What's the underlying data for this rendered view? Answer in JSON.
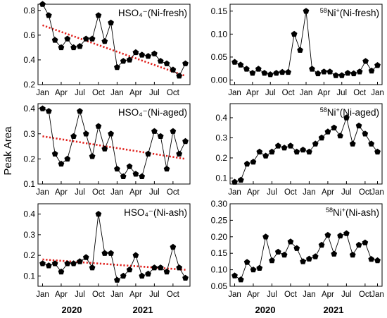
{
  "figure": {
    "ylabel": "Peak Area",
    "year_labels": [
      "2020",
      "2021"
    ],
    "colors": {
      "line": "#000000",
      "marker": "#000000",
      "trend": "#e0201c"
    }
  },
  "chart_data": [
    {
      "type": "line",
      "title": "HSO₄⁻(Ni-fresh)",
      "x_ticks": [
        "Jan",
        "Apr",
        "Jul",
        "Oct",
        "Jan",
        "Apr",
        "Jul",
        "Oct"
      ],
      "ylim": [
        0.2,
        0.85
      ],
      "y_ticks": [
        "0.2",
        "0.4",
        "0.6",
        "0.8"
      ],
      "y_tick_values": [
        0.2,
        0.4,
        0.6,
        0.8
      ],
      "values": [
        0.85,
        0.76,
        0.56,
        0.5,
        0.57,
        0.5,
        0.51,
        0.57,
        0.57,
        0.76,
        0.55,
        0.7,
        0.34,
        0.39,
        0.4,
        0.46,
        0.44,
        0.43,
        0.45,
        0.39,
        0.37,
        0.32,
        0.27,
        0.37
      ],
      "trend": [
        0.68,
        0.27
      ],
      "legend": "top-right",
      "grid": false
    },
    {
      "type": "line",
      "title": "58Ni+(Ni-fresh)",
      "title_sup": "58",
      "title_main": "Ni",
      "title_sup2": "+",
      "title_rest": "(Ni-fresh)",
      "x_ticks": [
        "Jan",
        "Apr",
        "Jul",
        "Oct",
        "Jan",
        "Apr",
        "Jul",
        "Oct",
        "Jan"
      ],
      "ylim": [
        -0.01,
        0.165
      ],
      "y_ticks": [
        "0.00",
        "0.05",
        "0.10",
        "0.15"
      ],
      "y_tick_values": [
        0.0,
        0.05,
        0.1,
        0.15
      ],
      "values": [
        0.039,
        0.033,
        0.024,
        0.015,
        0.024,
        0.015,
        0.012,
        0.015,
        0.017,
        0.017,
        0.1,
        0.065,
        0.15,
        0.024,
        0.014,
        0.018,
        0.018,
        0.01,
        0.01,
        0.015,
        0.014,
        0.018,
        0.041,
        0.02,
        0.032
      ],
      "grid": false
    },
    {
      "type": "line",
      "title": "HSO₄⁻(Ni-aged)",
      "x_ticks": [
        "Jan",
        "Apr",
        "Jul",
        "Oct",
        "Jan",
        "Apr",
        "Jul",
        "Oct"
      ],
      "ylim": [
        0.1,
        0.42
      ],
      "y_ticks": [
        "0.1",
        "0.2",
        "0.3",
        "0.4"
      ],
      "y_tick_values": [
        0.1,
        0.2,
        0.3,
        0.4
      ],
      "values": [
        0.4,
        0.39,
        0.22,
        0.18,
        0.2,
        0.29,
        0.39,
        0.3,
        0.21,
        0.33,
        0.24,
        0.3,
        0.16,
        0.13,
        0.17,
        0.14,
        0.13,
        0.22,
        0.31,
        0.29,
        0.16,
        0.31,
        0.22,
        0.27
      ],
      "trend": [
        0.29,
        0.2
      ],
      "grid": false
    },
    {
      "type": "line",
      "title": "58Ni+(Ni-aged)",
      "title_sup": "58",
      "title_main": "Ni",
      "title_sup2": "+",
      "title_rest": "(Ni-aged)",
      "x_ticks": [
        "Jan",
        "Apr",
        "Jul",
        "Oct",
        "Jan",
        "Apr",
        "Jul",
        "Oct",
        "Jan"
      ],
      "ylim": [
        0.07,
        0.47
      ],
      "y_ticks": [
        "0.1",
        "0.2",
        "0.3",
        "0.4"
      ],
      "y_tick_values": [
        0.1,
        0.2,
        0.3,
        0.4
      ],
      "values": [
        0.08,
        0.09,
        0.17,
        0.18,
        0.23,
        0.21,
        0.23,
        0.26,
        0.25,
        0.26,
        0.23,
        0.24,
        0.23,
        0.27,
        0.3,
        0.33,
        0.35,
        0.31,
        0.4,
        0.27,
        0.36,
        0.32,
        0.27,
        0.23
      ],
      "grid": false
    },
    {
      "type": "line",
      "title": "HSO₄⁻(Ni-ash)",
      "x_ticks": [
        "Jan",
        "Apr",
        "Jul",
        "Oct",
        "Jan",
        "Apr",
        "Jul",
        "Oct"
      ],
      "ylim": [
        0.05,
        0.45
      ],
      "y_ticks": [
        "0.1",
        "0.2",
        "0.3",
        "0.4"
      ],
      "y_tick_values": [
        0.1,
        0.2,
        0.3,
        0.4
      ],
      "values": [
        0.16,
        0.15,
        0.16,
        0.12,
        0.16,
        0.16,
        0.17,
        0.19,
        0.14,
        0.4,
        0.21,
        0.21,
        0.08,
        0.1,
        0.13,
        0.2,
        0.1,
        0.11,
        0.14,
        0.14,
        0.12,
        0.24,
        0.14,
        0.09
      ],
      "trend": [
        0.18,
        0.13
      ],
      "grid": false
    },
    {
      "type": "line",
      "title": "58Ni+(Ni-ash)",
      "title_sup": "58",
      "title_main": "Ni",
      "title_sup2": "+",
      "title_rest": "(Ni-ash)",
      "x_ticks": [
        "Jan",
        "Apr",
        "Jul",
        "Oct",
        "Jan",
        "Apr",
        "Jul",
        "Oct",
        "Jan"
      ],
      "ylim": [
        0.05,
        0.3
      ],
      "y_ticks": [
        "0.05",
        "0.10",
        "0.15",
        "0.20",
        "0.25",
        "0.30"
      ],
      "y_tick_values": [
        0.05,
        0.1,
        0.15,
        0.2,
        0.25,
        0.3
      ],
      "values": [
        0.082,
        0.07,
        0.123,
        0.1,
        0.105,
        0.2,
        0.128,
        0.154,
        0.145,
        0.185,
        0.165,
        0.125,
        0.133,
        0.14,
        0.175,
        0.205,
        0.148,
        0.203,
        0.21,
        0.145,
        0.175,
        0.182,
        0.132,
        0.128
      ],
      "grid": false
    }
  ]
}
